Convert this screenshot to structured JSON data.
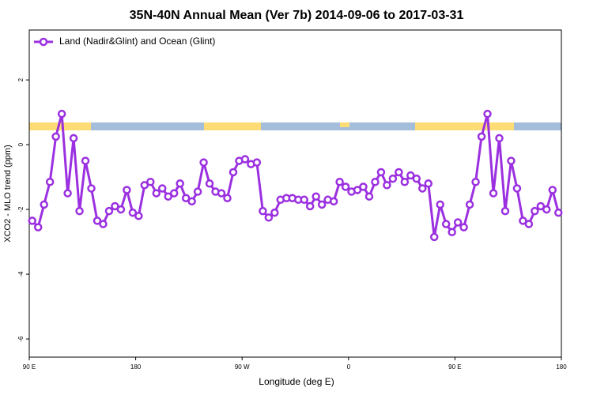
{
  "chart_data": {
    "type": "line",
    "title": "35N-40N Annual Mean (Ver 7b)   2014-09-06 to 2017-03-31",
    "x_label": "Longitude (deg E)",
    "y_label": "XCO2 - MLO trend (ppm)",
    "legend_position": "top-left",
    "xlim": [
      90,
      540
    ],
    "ylim": [
      -6.56,
      3.54
    ],
    "xticks": [
      {
        "value": 90,
        "label": "90 E"
      },
      180,
      {
        "value": 270,
        "label": "90 W"
      },
      {
        "value": 360,
        "label": "0"
      },
      {
        "value": 450,
        "label": "90 E"
      },
      {
        "value": 540,
        "label": "180"
      }
    ],
    "yticks": [
      -6,
      -4,
      -2,
      0,
      2
    ],
    "x": [
      92.5,
      97.5,
      102.5,
      107.5,
      112.5,
      117.5,
      122.5,
      127.5,
      132.5,
      137.5,
      142.5,
      147.5,
      152.5,
      157.5,
      162.5,
      167.5,
      172.5,
      177.5,
      182.5,
      187.5,
      192.5,
      197.5,
      202.5,
      207.5,
      212.5,
      217.5,
      222.5,
      227.5,
      232.5,
      237.5,
      242.5,
      247.5,
      252.5,
      257.5,
      262.5,
      267.5,
      272.5,
      277.5,
      282.5,
      287.5,
      292.5,
      297.5,
      302.5,
      307.5,
      312.5,
      317.5,
      322.5,
      327.5,
      332.5,
      337.5,
      342.5,
      347.5,
      352.5,
      357.5,
      362.5,
      367.5,
      372.5,
      377.5,
      382.5,
      387.5,
      392.5,
      397.5,
      402.5,
      407.5,
      412.5,
      417.5,
      422.5,
      427.5,
      432.5,
      437.5,
      442.5,
      447.5,
      452.5,
      457.5,
      462.5,
      467.5,
      472.5,
      477.5,
      482.5,
      487.5,
      492.5,
      497.5,
      502.5,
      507.5,
      512.5,
      517.5,
      522.5,
      527.5,
      532.5,
      537.5
    ],
    "series": [
      {
        "name": "Land (Nadir&Glint) and Ocean (Glint)",
        "color": "#9b30e0",
        "values": [
          -2.35,
          -2.55,
          -1.85,
          -1.15,
          0.25,
          0.95,
          -1.5,
          0.2,
          -2.05,
          -0.5,
          -1.35,
          -2.35,
          -2.45,
          -2.05,
          -1.9,
          -2.0,
          -1.4,
          -2.1,
          -2.2,
          -1.25,
          -1.15,
          -1.5,
          -1.35,
          -1.6,
          -1.5,
          -1.2,
          -1.65,
          -1.75,
          -1.45,
          -0.55,
          -1.2,
          -1.45,
          -1.5,
          -1.65,
          -0.85,
          -0.5,
          -0.45,
          -0.6,
          -0.55,
          -2.05,
          -2.25,
          -2.1,
          -1.7,
          -1.65,
          -1.65,
          -1.7,
          -1.7,
          -1.9,
          -1.6,
          -1.85,
          -1.7,
          -1.75,
          -1.15,
          -1.3,
          -1.45,
          -1.4,
          -1.3,
          -1.6,
          -1.15,
          -0.85,
          -1.25,
          -1.05,
          -0.85,
          -1.15,
          -0.95,
          -1.05,
          -1.35,
          -1.2,
          -2.85,
          -1.85,
          -2.45,
          -2.7,
          -2.4,
          -2.55,
          -1.85,
          -1.15,
          0.25,
          0.95,
          -1.5,
          0.2,
          -2.05,
          -0.5,
          -1.35,
          -2.35,
          -2.45,
          -2.05,
          -1.9,
          -2.0,
          -1.4,
          -2.1
        ]
      }
    ]
  }
}
